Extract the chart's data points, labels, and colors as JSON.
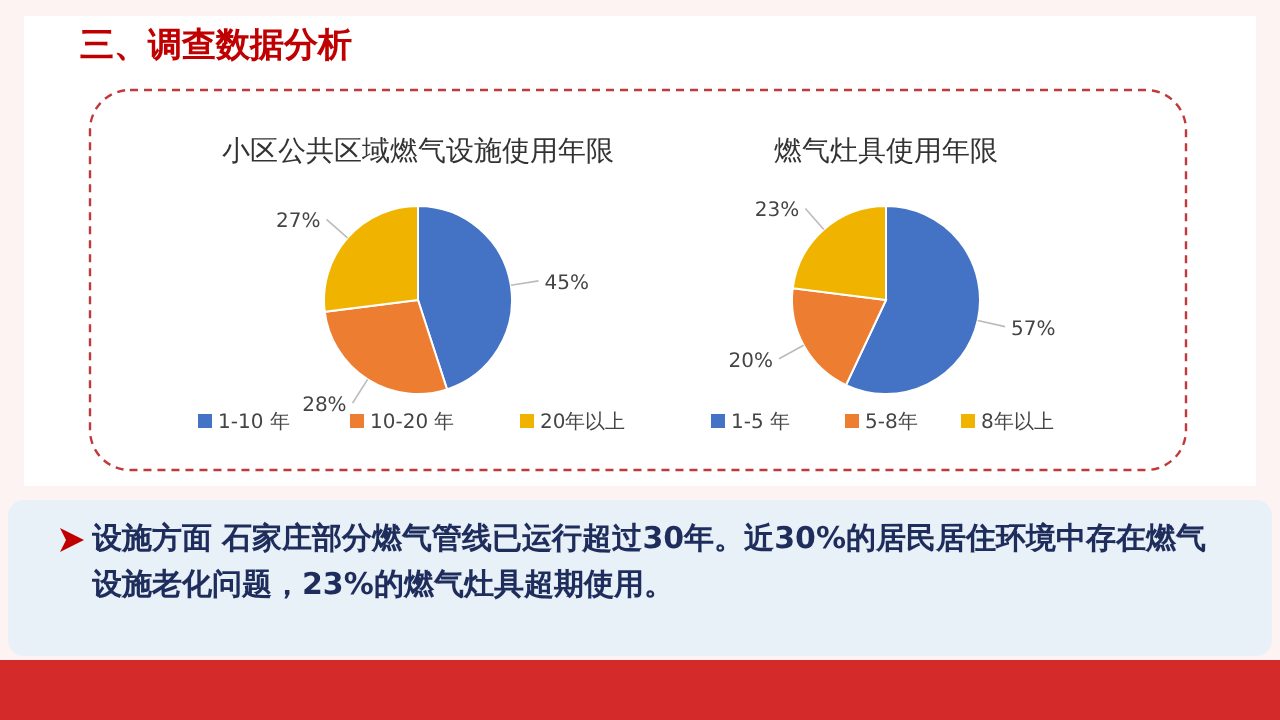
{
  "chart_data": [
    {
      "type": "pie",
      "title": "小区公共区域燃气设施使用年限",
      "categories": [
        "1-10 年",
        "10-20 年",
        "20年以上"
      ],
      "values": [
        45,
        28,
        27
      ],
      "value_labels": [
        "45%",
        "28%",
        "27%"
      ],
      "colors": [
        "#4472c4",
        "#ed7d31",
        "#f0b400"
      ],
      "legend": "bottom",
      "annotations": [
        "三、调查数据分析",
        "设施方面  石家庄部分燃气管线已运行超过30年。近30%的居民居住环境中存在燃气设施老化问题，23%的燃气灶具超期使用。"
      ]
    },
    {
      "type": "pie",
      "title": "燃气灶具使用年限",
      "categories": [
        "1-5 年",
        "5-8年",
        "8年以上"
      ],
      "values": [
        57,
        20,
        23
      ],
      "value_labels": [
        "57%",
        "20%",
        "23%"
      ],
      "colors": [
        "#4472c4",
        "#ed7d31",
        "#f0b400"
      ],
      "legend": "bottom"
    }
  ]
}
